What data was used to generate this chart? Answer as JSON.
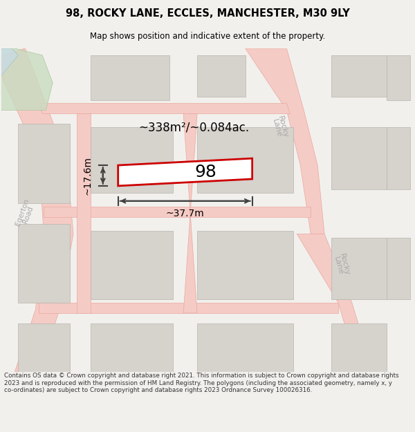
{
  "title": "98, ROCKY LANE, ECCLES, MANCHESTER, M30 9LY",
  "subtitle": "Map shows position and indicative extent of the property.",
  "area_text": "~338m²/~0.084ac.",
  "width_text": "~37.7m",
  "height_text": "~17.6m",
  "property_number": "98",
  "footer": "Contains OS data © Crown copyright and database right 2021. This information is subject to Crown copyright and database rights 2023 and is reproduced with the permission of HM Land Registry. The polygons (including the associated geometry, namely x, y co-ordinates) are subject to Crown copyright and database rights 2023 Ordnance Survey 100026316.",
  "bg_color": "#f2f0ed",
  "map_bg": "#f2f0ed",
  "road_color": "#f5cbc5",
  "road_edge": "#e8a8a0",
  "building_color": "#d6d2cc",
  "building_edge": "#b8b4ae",
  "property_fill": "#ffffff",
  "property_edge": "#cc0000",
  "dim_color": "#404040",
  "text_color": "#000000",
  "footer_color": "#333333",
  "road_label_color": "#aaaaaa",
  "green_color": "#c8dcc0",
  "green_edge": "#a0c090",
  "blue_color": "#c8dce8"
}
